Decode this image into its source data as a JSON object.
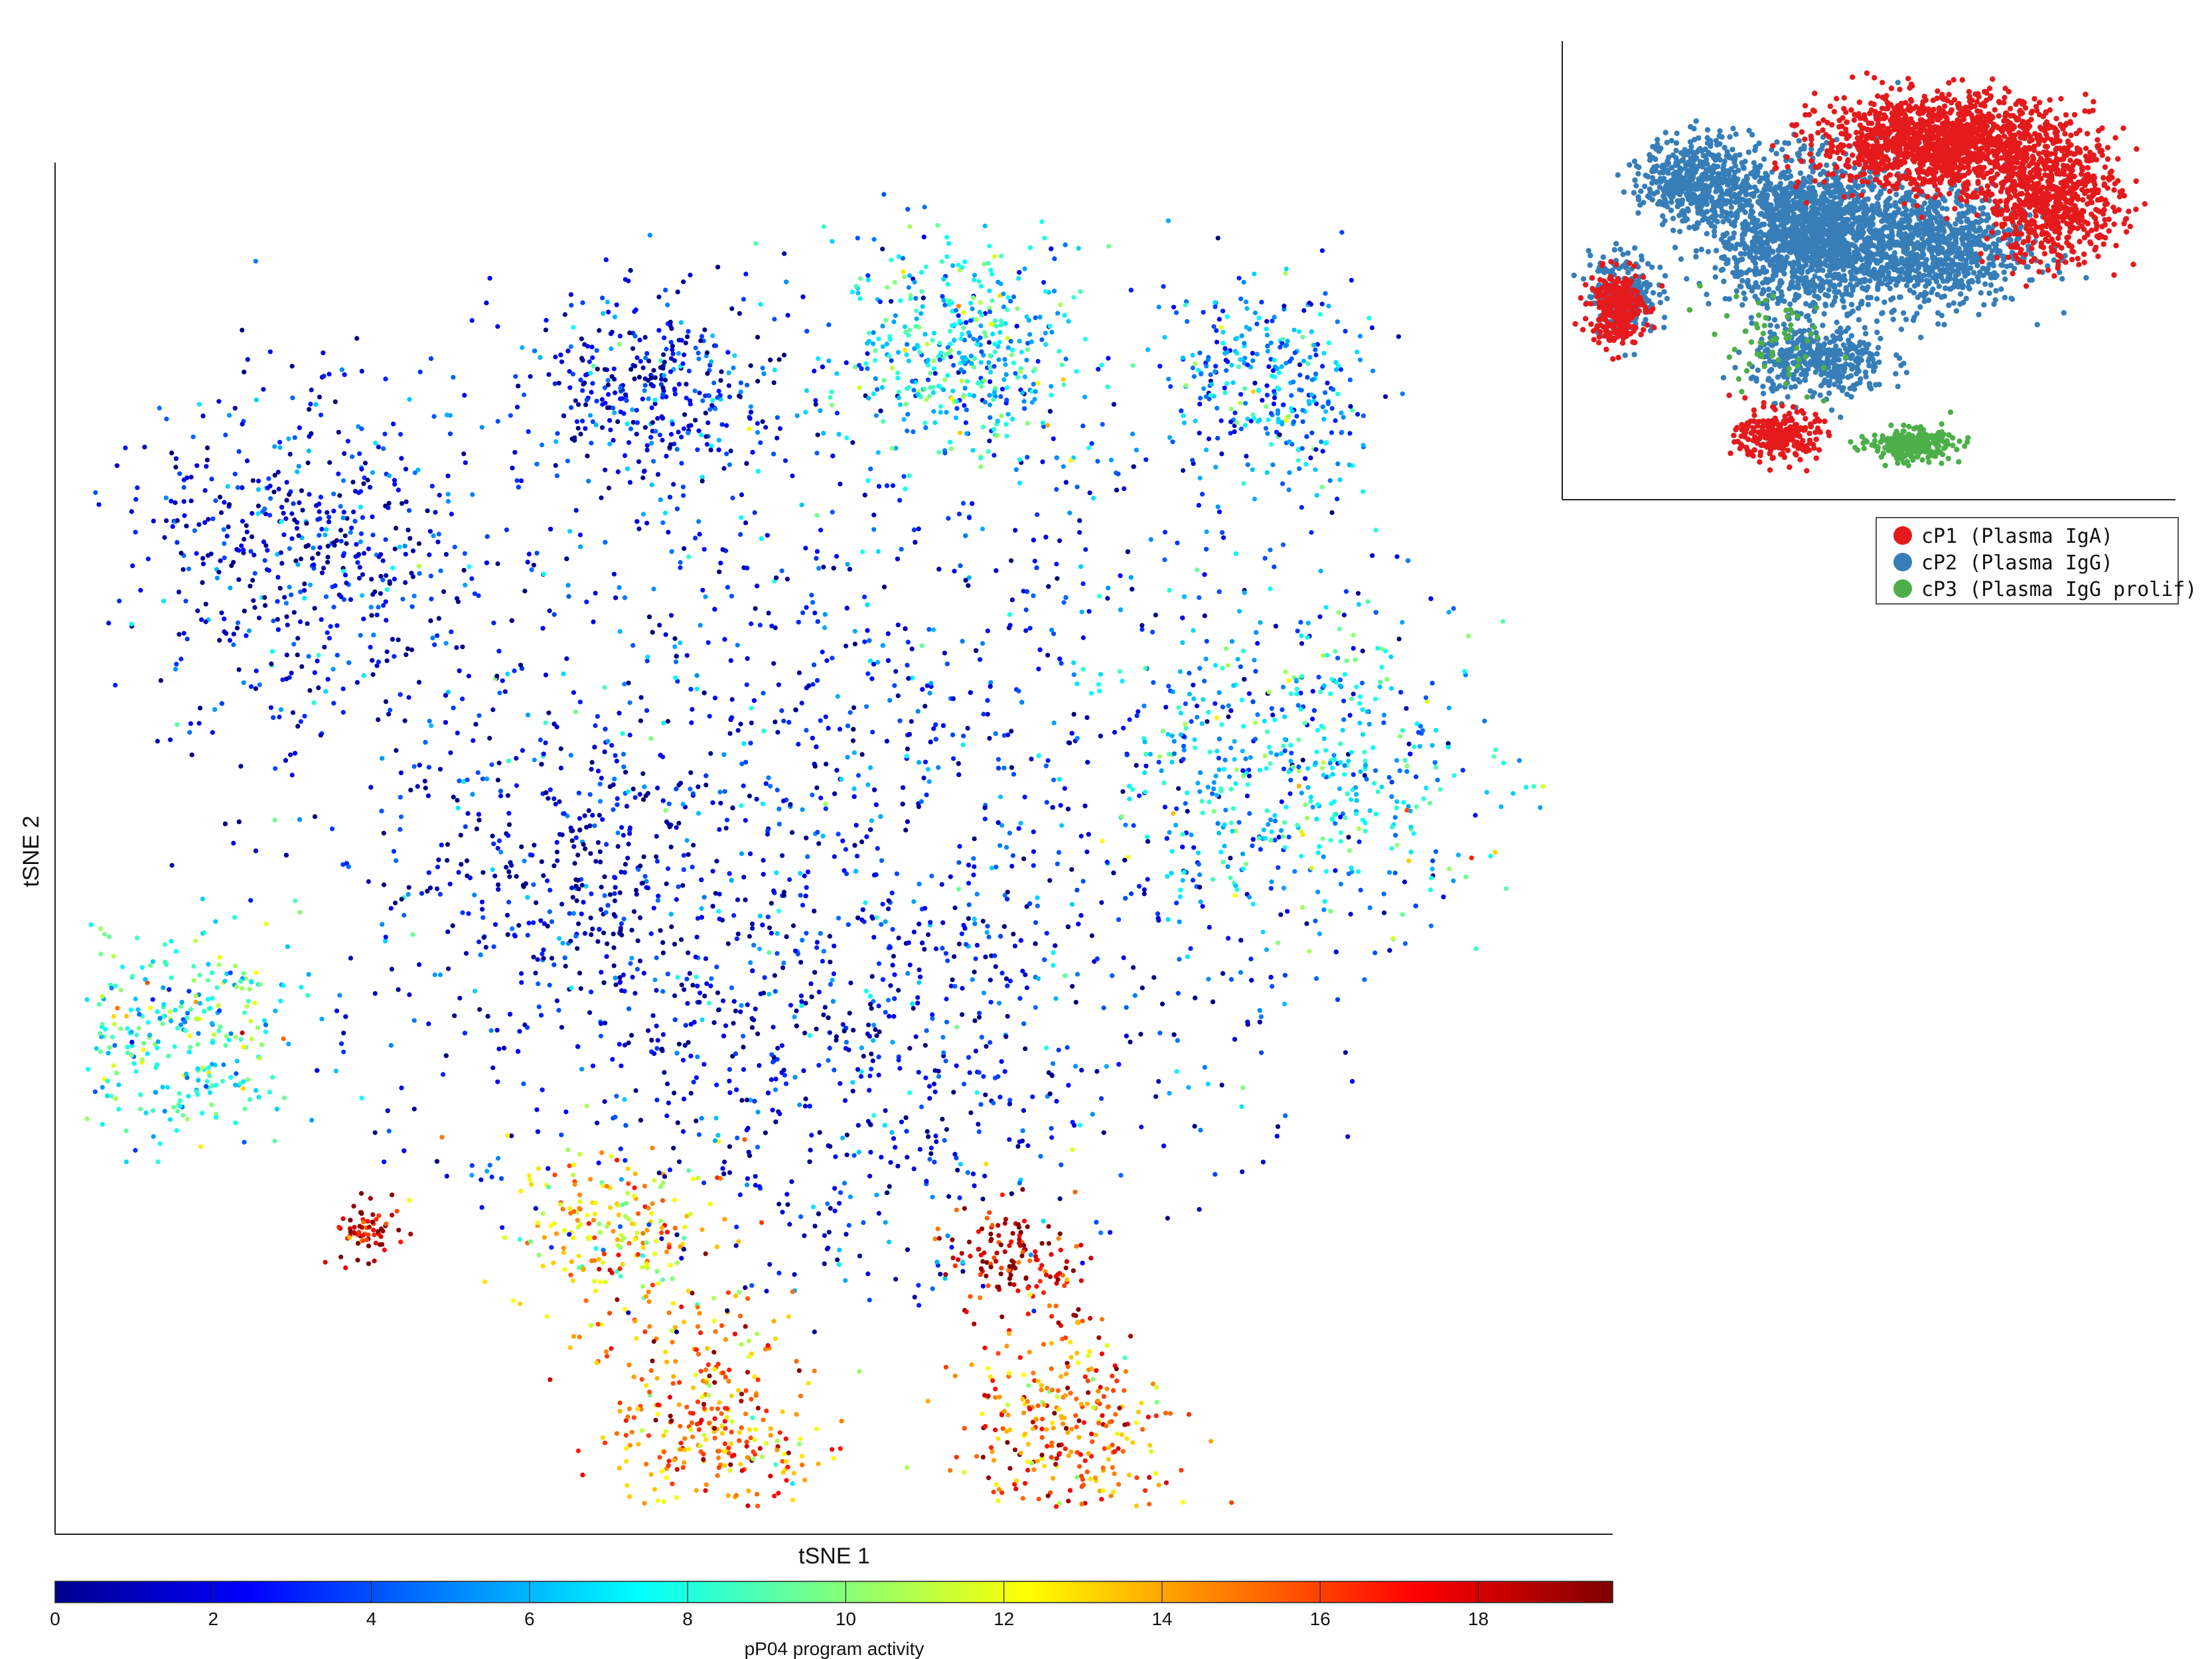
{
  "chart_data": [
    {
      "type": "scatter",
      "title": "",
      "xlabel": "tSNE 1",
      "ylabel": "tSNE 2",
      "xlim": [
        0,
        100
      ],
      "ylim": [
        0,
        100
      ],
      "axis_ticks": "none",
      "grid": false,
      "colormap": "jet",
      "colorbar": {
        "label": "pP04 program activity",
        "range": [
          0,
          19.7
        ],
        "ticks": [
          "0",
          "2",
          "4",
          "6",
          "8",
          "10",
          "12",
          "14",
          "16",
          "18"
        ],
        "tick_values": [
          0,
          2,
          4,
          6,
          8,
          10,
          12,
          14,
          16,
          18
        ],
        "placement": "bottom"
      },
      "points_note": "approx. cells colored by activity; dense regions of low activity (0-4), hotspots 14-19 near lower-middle and bottom",
      "regions": [
        {
          "cx": 50,
          "cy": 55,
          "spread": 38,
          "activity": 3.0
        },
        {
          "cx": 16,
          "cy": 72,
          "spread": 10,
          "activity": 2.0
        },
        {
          "cx": 38,
          "cy": 84,
          "spread": 6,
          "activity": 2.0
        },
        {
          "cx": 58,
          "cy": 86,
          "spread": 7,
          "activity": 7.0
        },
        {
          "cx": 78,
          "cy": 84,
          "spread": 6,
          "activity": 5.0
        },
        {
          "cx": 80,
          "cy": 55,
          "spread": 10,
          "activity": 6.5
        },
        {
          "cx": 8,
          "cy": 37,
          "spread": 7,
          "activity": 8.0
        },
        {
          "cx": 36,
          "cy": 22,
          "spread": 6,
          "activity": 13.0
        },
        {
          "cx": 42,
          "cy": 8,
          "spread": 7,
          "activity": 14.5
        },
        {
          "cx": 62,
          "cy": 20,
          "spread": 4,
          "activity": 18.0
        },
        {
          "cx": 65,
          "cy": 8,
          "spread": 6,
          "activity": 15.0
        },
        {
          "cx": 20,
          "cy": 22,
          "spread": 2,
          "activity": 18.0
        },
        {
          "cx": 50,
          "cy": 36,
          "spread": 14,
          "activity": 1.5
        },
        {
          "cx": 33,
          "cy": 48,
          "spread": 10,
          "activity": 1.0
        }
      ]
    },
    {
      "type": "scatter",
      "title": "",
      "xlabel": "",
      "ylabel": "",
      "axis_ticks": "none",
      "grid": false,
      "legend_placement": "bottom-right",
      "series": [
        {
          "name": "cP1 (Plasma IgA)",
          "color": "#e41a1c",
          "regions_note": "upper-right lobe, left island, bottom lobe"
        },
        {
          "name": "cP2 (Plasma IgG)",
          "color": "#377eb8",
          "regions_note": "left and center body"
        },
        {
          "name": "cP3 (Plasma IgG prolif)",
          "color": "#4daf4a",
          "regions_note": "small cluster bottom-middle"
        }
      ]
    }
  ]
}
